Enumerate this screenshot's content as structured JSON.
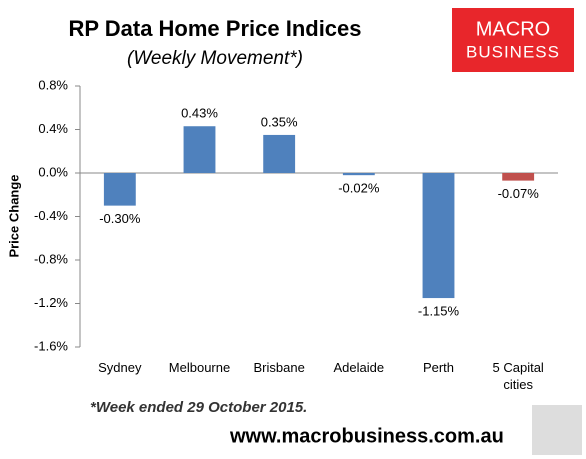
{
  "chart_data": {
    "type": "bar",
    "title": "RP Data Home Price Indices",
    "subtitle": "(Weekly Movement*)",
    "y_label": "Price Change",
    "categories": [
      "Sydney",
      "Melbourne",
      "Brisbane",
      "Adelaide",
      "Perth",
      "5 Capital cities"
    ],
    "values": [
      -0.3,
      0.43,
      0.35,
      -0.02,
      -1.15,
      -0.07
    ],
    "value_labels": [
      "-0.30%",
      "0.43%",
      "0.35%",
      "-0.02%",
      "-1.15%",
      "-0.07%"
    ],
    "colors": [
      "#4f81bd",
      "#4f81bd",
      "#4f81bd",
      "#4f81bd",
      "#4f81bd",
      "#c0504d"
    ],
    "ylim": [
      -1.6,
      0.8
    ],
    "yticks": [
      {
        "value": 0.8,
        "label": "0.8%"
      },
      {
        "value": 0.4,
        "label": "0.4%"
      },
      {
        "value": 0,
        "label": "0.0%"
      },
      {
        "value": -0.4,
        "label": "-0.4%"
      },
      {
        "value": -0.8,
        "label": "-0.8%"
      },
      {
        "value": -1.2,
        "label": "-1.2%"
      },
      {
        "value": -1.6,
        "label": "-1.6%"
      }
    ],
    "grid": false,
    "footnote": "*Week ended 29 October 2015.",
    "source": "www.macrobusiness.com.au",
    "logo": [
      "MACRO",
      "BUSINESS"
    ]
  }
}
